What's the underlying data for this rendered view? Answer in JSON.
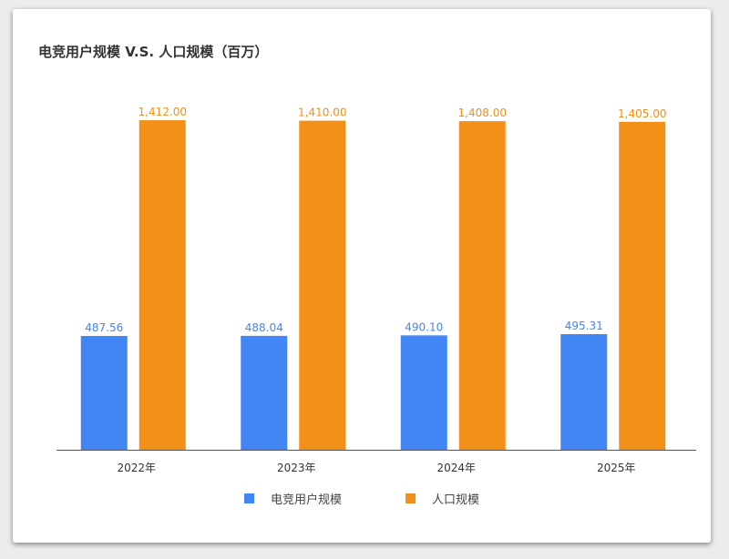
{
  "chart_data": {
    "type": "bar",
    "title": "电竞用户规模 V.S. 人口规模（百万）",
    "categories": [
      "2022年",
      "2023年",
      "2024年",
      "2025年"
    ],
    "series": [
      {
        "name": "电竞用户规模",
        "color": "#4285f4",
        "values": [
          487.56,
          488.04,
          490.1,
          495.31
        ],
        "labels": [
          "487.56",
          "488.04",
          "490.10",
          "495.31"
        ]
      },
      {
        "name": "人口规模",
        "color": "#f2901a",
        "values": [
          1412.0,
          1410.0,
          1408.0,
          1405.0
        ],
        "labels": [
          "1,412.00",
          "1,410.00",
          "1,408.00",
          "1,405.00"
        ]
      }
    ],
    "ylim": [
      0,
      1420
    ],
    "grid": false,
    "legend_position": "bottom"
  }
}
